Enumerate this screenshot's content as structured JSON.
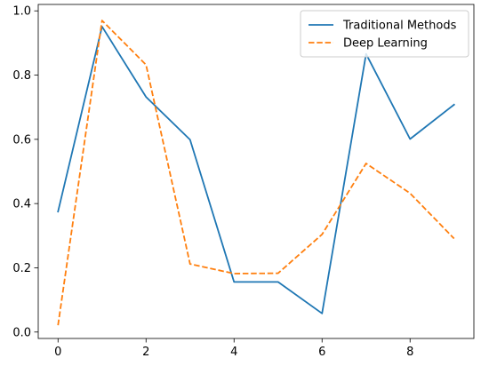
{
  "chart_data": {
    "type": "line",
    "title": "",
    "xlabel": "",
    "ylabel": "",
    "x": [
      0,
      1,
      2,
      3,
      4,
      5,
      6,
      7,
      8,
      9
    ],
    "xlim": [
      -0.45,
      9.45
    ],
    "ylim": [
      -0.02,
      1.02
    ],
    "xticks": [
      0,
      2,
      4,
      6,
      8
    ],
    "yticks": [
      0.0,
      0.2,
      0.4,
      0.6,
      0.8,
      1.0
    ],
    "xtick_labels": [
      "0",
      "2",
      "4",
      "6",
      "8"
    ],
    "ytick_labels": [
      "0.0",
      "0.2",
      "0.4",
      "0.6",
      "0.8",
      "1.0"
    ],
    "grid": false,
    "legend_position": "top-right",
    "series": [
      {
        "name": "Traditional Methods",
        "color": "#1f77b4",
        "style": "solid",
        "values": [
          0.375,
          0.951,
          0.732,
          0.599,
          0.156,
          0.156,
          0.058,
          0.866,
          0.601,
          0.708
        ]
      },
      {
        "name": "Deep Learning",
        "color": "#ff7f0e",
        "style": "dashed",
        "values": [
          0.021,
          0.97,
          0.832,
          0.212,
          0.182,
          0.183,
          0.304,
          0.525,
          0.432,
          0.291
        ]
      }
    ]
  }
}
